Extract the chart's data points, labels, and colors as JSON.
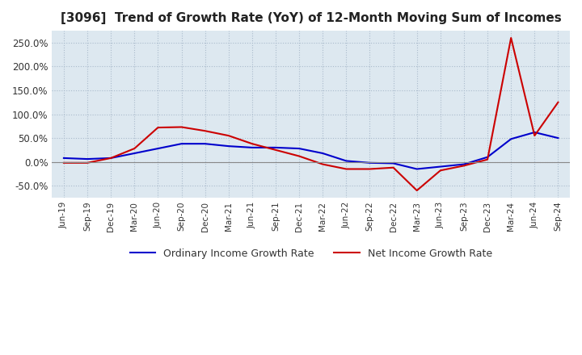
{
  "title": "[3096]  Trend of Growth Rate (YoY) of 12-Month Moving Sum of Incomes",
  "title_fontsize": 11,
  "ylim": [
    -75,
    275
  ],
  "yticks": [
    -50.0,
    0.0,
    50.0,
    100.0,
    150.0,
    200.0,
    250.0
  ],
  "ytick_labels": [
    "-50.0%",
    "0.0%",
    "50.0%",
    "100.0%",
    "150.0%",
    "200.0%",
    "250.0%"
  ],
  "background_color": "#ffffff",
  "plot_bg_color": "#dde8f0",
  "grid_color": "#aabbcc",
  "zero_line_color": "#888888",
  "ordinary_color": "#0000cc",
  "net_color": "#cc0000",
  "legend_ordinary": "Ordinary Income Growth Rate",
  "legend_net": "Net Income Growth Rate",
  "dates": [
    "Jun-19",
    "Sep-19",
    "Dec-19",
    "Mar-20",
    "Jun-20",
    "Sep-20",
    "Dec-20",
    "Mar-21",
    "Jun-21",
    "Sep-21",
    "Dec-21",
    "Mar-22",
    "Jun-22",
    "Sep-22",
    "Dec-22",
    "Mar-23",
    "Jun-23",
    "Sep-23",
    "Dec-23",
    "Mar-24",
    "Jun-24",
    "Sep-24"
  ],
  "ordinary_values": [
    8.0,
    6.0,
    8.0,
    18.0,
    28.0,
    38.0,
    38.0,
    33.0,
    30.0,
    30.0,
    28.0,
    18.0,
    2.0,
    -2.0,
    -3.0,
    -15.0,
    -10.0,
    -5.0,
    10.0,
    48.0,
    62.0,
    50.0
  ],
  "net_values": [
    -2.0,
    -2.0,
    8.0,
    28.0,
    72.0,
    73.0,
    65.0,
    55.0,
    38.0,
    25.0,
    12.0,
    -5.0,
    -15.0,
    -15.0,
    -12.0,
    -60.0,
    -18.0,
    -8.0,
    5.0,
    260.0,
    55.0,
    125.0
  ]
}
